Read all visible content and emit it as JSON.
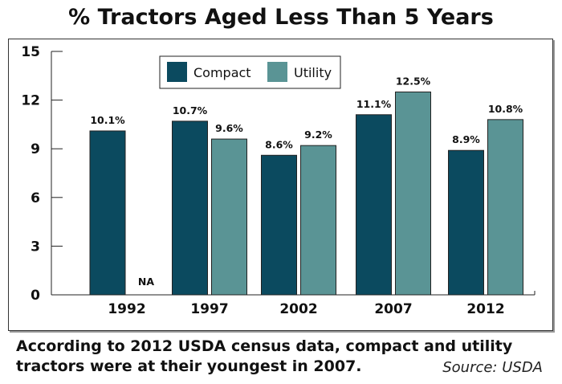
{
  "chart_data": {
    "type": "bar",
    "title": "% Tractors Aged Less Than 5 Years",
    "categories": [
      "1992",
      "1997",
      "2002",
      "2007",
      "2012"
    ],
    "series": [
      {
        "name": "Compact",
        "color": "#0b4a5f",
        "values": [
          10.1,
          10.7,
          8.6,
          11.1,
          8.9
        ],
        "labels": [
          "10.1%",
          "10.7%",
          "8.6%",
          "11.1%",
          "8.9%"
        ]
      },
      {
        "name": "Utility",
        "color": "#5a9495",
        "values": [
          null,
          9.6,
          9.2,
          12.5,
          10.8
        ],
        "labels": [
          "NA",
          "9.6%",
          "9.2%",
          "12.5%",
          "10.8%"
        ]
      }
    ],
    "yticks": [
      0,
      3,
      6,
      9,
      12,
      15
    ],
    "ylim": [
      0,
      15
    ],
    "xlabel": "",
    "ylabel": "",
    "legend": "top-center",
    "grid": false
  },
  "caption": {
    "line1": "According to 2012 USDA census data, compact and utility",
    "line2": "tractors were at their youngest in 2007.",
    "source": "Source: USDA"
  }
}
